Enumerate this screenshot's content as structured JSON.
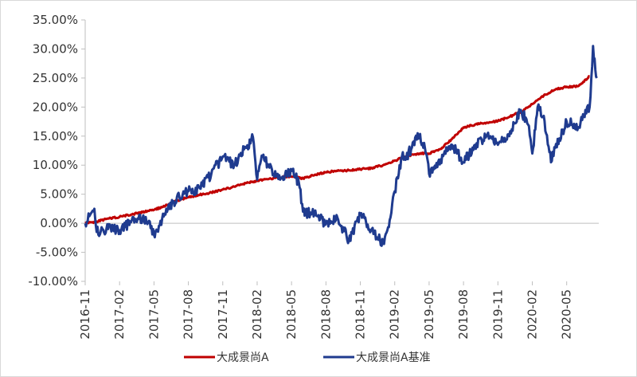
{
  "colors": {
    "background": "#ffffff",
    "axis": "#bfbfbf",
    "series_a": "#c00000",
    "series_b": "#1f3b8f",
    "text": "#333333"
  },
  "chart_data": {
    "type": "line",
    "title": "",
    "xlabel": "",
    "ylabel": "",
    "x_tick_labels": [
      "2016-11",
      "2017-02",
      "2017-05",
      "2017-08",
      "2017-11",
      "2018-02",
      "2018-05",
      "2018-08",
      "2018-11",
      "2019-02",
      "2019-05",
      "2019-08",
      "2019-11",
      "2020-02",
      "2020-05"
    ],
    "y_tick_labels": [
      "35.00%",
      "30.00%",
      "25.00%",
      "20.00%",
      "15.00%",
      "10.00%",
      "5.00%",
      "0.00%",
      "-5.00%",
      "-10.00%"
    ],
    "ylim": [
      -10,
      35
    ],
    "y_unit": "%",
    "x_range": [
      "2016-11",
      "2020-07"
    ],
    "grid": false,
    "legend_position": "bottom",
    "series": [
      {
        "name": "大成景尚A",
        "color": "#c00000",
        "points": [
          [
            "2016-11",
            0.0
          ],
          [
            "2016-12",
            0.3
          ],
          [
            "2017-01",
            0.8
          ],
          [
            "2017-02",
            1.1
          ],
          [
            "2017-03",
            1.5
          ],
          [
            "2017-04",
            1.9
          ],
          [
            "2017-05",
            2.3
          ],
          [
            "2017-06",
            3.0
          ],
          [
            "2017-07",
            3.9
          ],
          [
            "2017-08",
            4.5
          ],
          [
            "2017-09",
            4.9
          ],
          [
            "2017-10",
            5.3
          ],
          [
            "2017-11",
            5.8
          ],
          [
            "2017-12",
            6.3
          ],
          [
            "2018-01",
            6.9
          ],
          [
            "2018-02",
            7.3
          ],
          [
            "2018-03",
            7.6
          ],
          [
            "2018-04",
            7.9
          ],
          [
            "2018-05",
            8.0
          ],
          [
            "2018-06",
            7.7
          ],
          [
            "2018-07",
            8.3
          ],
          [
            "2018-08",
            8.8
          ],
          [
            "2018-09",
            9.0
          ],
          [
            "2018-10",
            9.1
          ],
          [
            "2018-11",
            9.3
          ],
          [
            "2018-12",
            9.5
          ],
          [
            "2019-01",
            10.0
          ],
          [
            "2019-02",
            10.8
          ],
          [
            "2019-03",
            11.5
          ],
          [
            "2019-04",
            12.0
          ],
          [
            "2019-05",
            12.0
          ],
          [
            "2019-06",
            12.8
          ],
          [
            "2019-07",
            14.5
          ],
          [
            "2019-08",
            16.5
          ],
          [
            "2019-09",
            17.0
          ],
          [
            "2019-10",
            17.3
          ],
          [
            "2019-11",
            17.6
          ],
          [
            "2019-12",
            18.3
          ],
          [
            "2020-01",
            19.2
          ],
          [
            "2020-02",
            20.5
          ],
          [
            "2020-03",
            22.0
          ],
          [
            "2020-04",
            23.0
          ],
          [
            "2020-05",
            23.5
          ],
          [
            "2020-06",
            23.6
          ],
          [
            "2020-07",
            25.3
          ]
        ]
      },
      {
        "name": "大成景尚A基准",
        "color": "#1f3b8f",
        "points": [
          [
            "2016-11",
            0.0
          ],
          [
            "2016-11-25",
            2.5
          ],
          [
            "2016-12",
            -1.5
          ],
          [
            "2017-01",
            -1.0
          ],
          [
            "2017-02",
            -1.2
          ],
          [
            "2017-03",
            0.2
          ],
          [
            "2017-04",
            0.8
          ],
          [
            "2017-04-20",
            0.3
          ],
          [
            "2017-05",
            -2.0
          ],
          [
            "2017-06",
            1.5
          ],
          [
            "2017-07",
            4.5
          ],
          [
            "2017-08",
            5.5
          ],
          [
            "2017-09",
            6.0
          ],
          [
            "2017-10",
            8.5
          ],
          [
            "2017-11",
            11.5
          ],
          [
            "2017-12",
            10.0
          ],
          [
            "2018-01",
            13.0
          ],
          [
            "2018-01-20",
            14.8
          ],
          [
            "2018-02",
            7.5
          ],
          [
            "2018-02-15",
            11.5
          ],
          [
            "2018-03",
            10.0
          ],
          [
            "2018-04",
            7.5
          ],
          [
            "2018-05",
            9.0
          ],
          [
            "2018-05-20",
            7.0
          ],
          [
            "2018-06",
            2.0
          ],
          [
            "2018-07",
            1.5
          ],
          [
            "2018-08",
            0.0
          ],
          [
            "2018-09",
            1.0
          ],
          [
            "2018-10",
            -3.0
          ],
          [
            "2018-11",
            1.5
          ],
          [
            "2018-12",
            -1.0
          ],
          [
            "2019-01",
            -3.5
          ],
          [
            "2019-01-20",
            1.0
          ],
          [
            "2019-02",
            5.5
          ],
          [
            "2019-02-20",
            11.5
          ],
          [
            "2019-03",
            11.0
          ],
          [
            "2019-04",
            15.5
          ],
          [
            "2019-04-20",
            13.0
          ],
          [
            "2019-05",
            8.5
          ],
          [
            "2019-06",
            11.0
          ],
          [
            "2019-07",
            13.5
          ],
          [
            "2019-08",
            10.5
          ],
          [
            "2019-09",
            13.5
          ],
          [
            "2019-10",
            15.0
          ],
          [
            "2019-11",
            13.5
          ],
          [
            "2019-12",
            15.0
          ],
          [
            "2020-01",
            19.5
          ],
          [
            "2020-01-20",
            17.0
          ],
          [
            "2020-02",
            12.0
          ],
          [
            "2020-02-15",
            20.0
          ],
          [
            "2020-03",
            18.5
          ],
          [
            "2020-03-20",
            10.5
          ],
          [
            "2020-04",
            13.0
          ],
          [
            "2020-05",
            17.5
          ],
          [
            "2020-06",
            16.5
          ],
          [
            "2020-06-20",
            19.5
          ],
          [
            "2020-07",
            20.0
          ],
          [
            "2020-07-10",
            30.5
          ],
          [
            "2020-07-20",
            25.0
          ]
        ]
      }
    ]
  }
}
